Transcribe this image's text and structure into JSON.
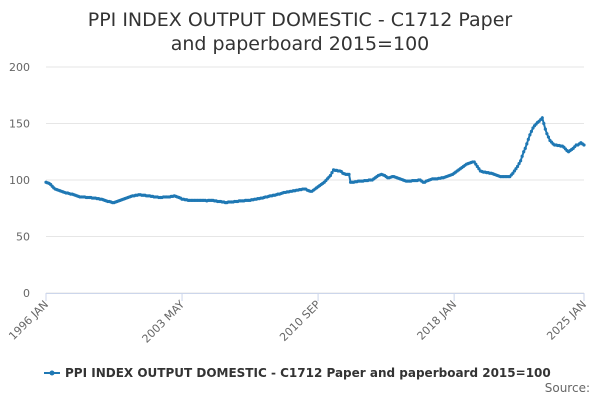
{
  "chart_data": {
    "type": "line",
    "title": "PPI INDEX OUTPUT DOMESTIC - C1712 Paper and paperboard 2015=100",
    "source": "Source:",
    "categories": [
      "1996 JAN",
      null,
      null,
      null,
      null,
      null,
      null,
      null,
      null,
      null,
      null,
      null,
      null,
      null,
      null,
      null,
      null,
      null,
      null,
      null,
      null,
      null,
      null,
      null,
      null,
      null,
      null,
      null,
      null,
      null,
      null,
      null,
      null,
      null,
      null,
      null,
      null,
      null,
      null,
      null,
      null,
      null,
      null,
      null,
      null,
      null,
      null,
      null,
      null,
      null,
      null,
      null,
      null,
      null,
      null,
      null,
      null,
      null,
      null,
      null,
      null,
      null,
      null,
      null,
      null,
      null,
      null,
      null,
      null,
      null,
      null,
      null,
      null,
      null,
      null,
      null,
      null,
      null,
      null,
      null,
      null,
      null,
      null,
      null,
      null,
      null,
      null,
      null,
      "2003 MAY",
      null,
      null,
      null,
      null,
      null,
      null,
      null,
      null,
      null,
      null,
      null,
      null,
      null,
      null,
      null,
      null,
      null,
      null,
      null,
      null,
      null,
      null,
      null,
      null,
      null,
      null,
      null,
      null,
      null,
      null,
      null,
      null,
      null,
      null,
      null,
      null,
      null,
      null,
      null,
      null,
      null,
      null,
      null,
      null,
      null,
      null,
      null,
      null,
      null,
      null,
      null,
      null,
      null,
      null,
      null,
      null,
      null,
      null,
      null,
      null,
      null,
      null,
      null,
      null,
      null,
      null,
      null,
      null,
      null,
      null,
      null,
      null,
      null,
      null,
      null,
      null,
      null,
      null,
      null,
      null,
      null,
      null,
      null,
      null,
      null,
      null,
      null,
      "2010 SEP",
      null,
      null,
      null,
      null,
      null,
      null,
      null,
      null,
      null,
      null,
      null,
      null,
      null,
      null,
      null,
      null,
      null,
      null,
      null,
      null,
      null,
      null,
      null,
      null,
      null,
      null,
      null,
      null,
      null,
      null,
      null,
      null,
      null,
      null,
      null,
      null,
      null,
      null,
      null,
      null,
      null,
      null,
      null,
      null,
      null,
      null,
      null,
      null,
      null,
      null,
      null,
      null,
      null,
      null,
      null,
      null,
      null,
      null,
      null,
      null,
      null,
      null,
      null,
      null,
      null,
      null,
      null,
      null,
      null,
      null,
      null,
      null,
      null,
      null,
      null,
      null,
      null,
      null,
      null,
      null,
      null,
      null,
      null,
      null,
      null,
      null,
      null,
      "2018 JAN",
      null,
      null,
      null,
      null,
      null,
      null,
      null,
      null,
      null,
      null,
      null,
      null,
      null,
      null,
      null,
      null,
      null,
      null,
      null,
      null,
      null,
      null,
      null,
      null,
      null,
      null,
      null,
      null,
      null,
      null,
      null,
      null,
      null,
      null,
      null,
      null,
      null,
      null,
      null,
      null,
      null,
      null,
      null,
      null,
      null,
      null,
      null,
      null,
      null,
      null,
      null,
      null,
      null,
      null,
      null,
      null,
      null,
      null,
      null,
      null,
      null,
      null,
      null,
      null,
      null,
      null,
      null,
      null,
      null,
      null,
      null,
      null,
      null,
      null,
      null,
      null,
      null,
      null,
      null,
      null,
      null,
      null,
      null,
      "2025 JAN"
    ],
    "series": [
      {
        "name": "PPI INDEX OUTPUT DOMESTIC - C1712 Paper and paperboard 2015=100",
        "color": "#1f78b4",
        "values": [
          98,
          97.5,
          97,
          96,
          94.5,
          93,
          92,
          91.5,
          91,
          90.5,
          90,
          89.5,
          89,
          88.5,
          88.5,
          88,
          87.5,
          87.5,
          87,
          86.5,
          86,
          85.5,
          85,
          85,
          85,
          85,
          84.5,
          84.5,
          84.5,
          84.5,
          84,
          84,
          84,
          83.5,
          83.5,
          83,
          83,
          82.5,
          82,
          81.5,
          81,
          81,
          80.5,
          80,
          80,
          80.5,
          81,
          81.5,
          82,
          82.5,
          83,
          83.5,
          84,
          84.5,
          85,
          85.5,
          86,
          86,
          86.5,
          86.5,
          87,
          87,
          86.5,
          86.5,
          86.5,
          86,
          86,
          86,
          85.5,
          85.5,
          85,
          85,
          85,
          84.5,
          84.5,
          84.5,
          85,
          85,
          85,
          85,
          85,
          85.5,
          85.5,
          86,
          85.5,
          85,
          84.5,
          84,
          83,
          83,
          82.5,
          82.5,
          82,
          82,
          82,
          82,
          82,
          82,
          82,
          82,
          82,
          82,
          82,
          82,
          81.5,
          82,
          82,
          82,
          82,
          81.5,
          81.5,
          81,
          81,
          81,
          80.5,
          80.5,
          80,
          80,
          80.5,
          80.5,
          80.5,
          80.5,
          81,
          81,
          81,
          81.5,
          81.5,
          81.5,
          81.5,
          82,
          82,
          82,
          82,
          82.5,
          82.5,
          83,
          83,
          83.5,
          83.5,
          84,
          84,
          84.5,
          85,
          85,
          85.5,
          86,
          86,
          86.5,
          86.5,
          87,
          87.5,
          87.5,
          88,
          88.5,
          89,
          89,
          89.5,
          89.5,
          90,
          90,
          90.5,
          90.5,
          91,
          91,
          91.5,
          91.5,
          92,
          92,
          92,
          91,
          90.5,
          90,
          90,
          91,
          92,
          93,
          94,
          95,
          96,
          97,
          98,
          99.5,
          101,
          102.5,
          104,
          106.5,
          109,
          108.5,
          108.5,
          108,
          108,
          107.5,
          106,
          105.5,
          105,
          105,
          105,
          98,
          98,
          98,
          98.5,
          98.5,
          99,
          99,
          99,
          99,
          99.5,
          99.5,
          99.5,
          100,
          100,
          100,
          101,
          102,
          103,
          104,
          104.5,
          105,
          104.5,
          104,
          103,
          102,
          102,
          102.5,
          103,
          103,
          102.5,
          102,
          101.5,
          101,
          100.5,
          100,
          99.5,
          99,
          99,
          99,
          99,
          99.5,
          99.5,
          99.5,
          99.5,
          100,
          100,
          99,
          98,
          98,
          99,
          99.5,
          100,
          100.5,
          101,
          101,
          101,
          101,
          101.5,
          101.5,
          102,
          102,
          102.5,
          103,
          103.5,
          104,
          104.5,
          105,
          106,
          107,
          108,
          109,
          110,
          111,
          112,
          113,
          114,
          114.5,
          115,
          115.5,
          116,
          116,
          114,
          112,
          110,
          108,
          107.5,
          107,
          107,
          106.5,
          106.5,
          106,
          106,
          105.5,
          105,
          104.5,
          104,
          103.5,
          103,
          103,
          103,
          103,
          103,
          103,
          103,
          104.5,
          106,
          108,
          110,
          112,
          114.5,
          117,
          121,
          125,
          128,
          132,
          136,
          140,
          143,
          146,
          148,
          149.5,
          151,
          152,
          153.5,
          155,
          150,
          145,
          141,
          138,
          135,
          133.5,
          132,
          131,
          131,
          130.5,
          130.5,
          130,
          130,
          129,
          127.5,
          126,
          125,
          126,
          127,
          128,
          129.5,
          131,
          131,
          132,
          133,
          132,
          131
        ]
      }
    ],
    "ylim": [
      0,
      200
    ],
    "yticks": [
      0,
      50,
      100,
      150,
      200
    ],
    "grid": true
  }
}
